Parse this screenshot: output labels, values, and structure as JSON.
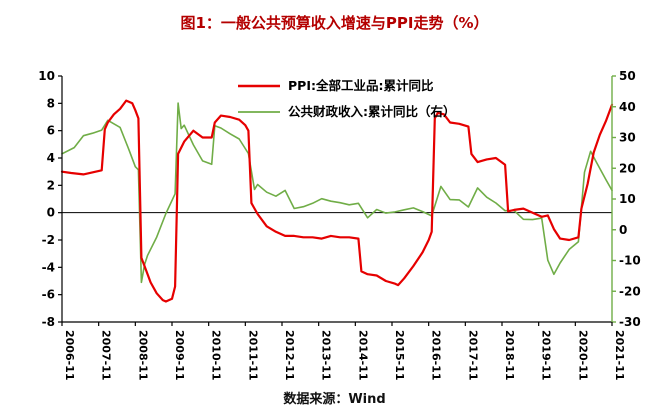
{
  "title": "图1：一般公共预算收入增速与PPI走势（%）",
  "source_note": "数据来源：Wind",
  "colors": {
    "ppi_line": "#e60000",
    "revenue_line": "#70ad47",
    "title_text": "#b40000",
    "axis": "#000000"
  },
  "chart_data": {
    "type": "line",
    "title": "图1：一般公共预算收入增速与PPI走势（%）",
    "grid": false,
    "legend_position": "top-center",
    "x_tick_labels": [
      "2006-11",
      "2007-11",
      "2008-11",
      "2009-11",
      "2010-11",
      "2011-11",
      "2012-11",
      "2013-11",
      "2014-11",
      "2015-11",
      "2016-11",
      "2017-11",
      "2018-11",
      "2019-11",
      "2020-11",
      "2021-11"
    ],
    "left_axis": {
      "min": -8,
      "max": 10,
      "ticks": [
        10,
        8,
        6,
        4,
        2,
        0,
        -2,
        -4,
        -6,
        -8
      ]
    },
    "right_axis": {
      "min": -30,
      "max": 50,
      "ticks": [
        50,
        40,
        30,
        20,
        10,
        0,
        -10,
        -20,
        -30
      ]
    },
    "series": [
      {
        "id": "ppi",
        "name": "PPI:全部工业品:累计同比",
        "axis": "left",
        "color": "#e60000",
        "points": [
          [
            "2006-11",
            3.0
          ],
          [
            "2007-02",
            2.9
          ],
          [
            "2007-06",
            2.8
          ],
          [
            "2007-10",
            3.0
          ],
          [
            "2007-12",
            3.1
          ],
          [
            "2008-01",
            6.1
          ],
          [
            "2008-02",
            6.6
          ],
          [
            "2008-04",
            7.2
          ],
          [
            "2008-06",
            7.6
          ],
          [
            "2008-08",
            8.2
          ],
          [
            "2008-10",
            8.0
          ],
          [
            "2008-11",
            7.5
          ],
          [
            "2008-12",
            6.9
          ],
          [
            "2009-01",
            -3.3
          ],
          [
            "2009-02",
            -3.9
          ],
          [
            "2009-04",
            -5.1
          ],
          [
            "2009-06",
            -5.9
          ],
          [
            "2009-08",
            -6.4
          ],
          [
            "2009-09",
            -6.5
          ],
          [
            "2009-11",
            -6.3
          ],
          [
            "2009-12",
            -5.4
          ],
          [
            "2010-01",
            4.3
          ],
          [
            "2010-03",
            5.2
          ],
          [
            "2010-06",
            6.0
          ],
          [
            "2010-09",
            5.5
          ],
          [
            "2010-12",
            5.5
          ],
          [
            "2011-01",
            6.6
          ],
          [
            "2011-03",
            7.1
          ],
          [
            "2011-06",
            7.0
          ],
          [
            "2011-09",
            6.8
          ],
          [
            "2011-11",
            6.4
          ],
          [
            "2011-12",
            6.0
          ],
          [
            "2012-01",
            0.7
          ],
          [
            "2012-03",
            -0.1
          ],
          [
            "2012-06",
            -1.0
          ],
          [
            "2012-09",
            -1.4
          ],
          [
            "2012-12",
            -1.7
          ],
          [
            "2013-03",
            -1.7
          ],
          [
            "2013-06",
            -1.8
          ],
          [
            "2013-09",
            -1.8
          ],
          [
            "2013-12",
            -1.9
          ],
          [
            "2014-03",
            -1.7
          ],
          [
            "2014-06",
            -1.8
          ],
          [
            "2014-09",
            -1.8
          ],
          [
            "2014-12",
            -1.9
          ],
          [
            "2015-01",
            -4.3
          ],
          [
            "2015-03",
            -4.5
          ],
          [
            "2015-06",
            -4.6
          ],
          [
            "2015-09",
            -5.0
          ],
          [
            "2015-12",
            -5.2
          ],
          [
            "2016-01",
            -5.3
          ],
          [
            "2016-03",
            -4.8
          ],
          [
            "2016-06",
            -3.9
          ],
          [
            "2016-09",
            -2.9
          ],
          [
            "2016-11",
            -2.0
          ],
          [
            "2016-12",
            -1.4
          ],
          [
            "2017-01",
            6.9
          ],
          [
            "2017-02",
            7.3
          ],
          [
            "2017-04",
            7.2
          ],
          [
            "2017-06",
            6.6
          ],
          [
            "2017-09",
            6.5
          ],
          [
            "2017-12",
            6.3
          ],
          [
            "2018-01",
            4.3
          ],
          [
            "2018-03",
            3.7
          ],
          [
            "2018-06",
            3.9
          ],
          [
            "2018-09",
            4.0
          ],
          [
            "2018-12",
            3.5
          ],
          [
            "2019-01",
            0.1
          ],
          [
            "2019-03",
            0.2
          ],
          [
            "2019-06",
            0.3
          ],
          [
            "2019-09",
            0.0
          ],
          [
            "2019-12",
            -0.3
          ],
          [
            "2020-02",
            -0.2
          ],
          [
            "2020-04",
            -1.2
          ],
          [
            "2020-06",
            -1.9
          ],
          [
            "2020-09",
            -2.0
          ],
          [
            "2020-12",
            -1.8
          ],
          [
            "2021-01",
            0.3
          ],
          [
            "2021-03",
            2.1
          ],
          [
            "2021-05",
            4.4
          ],
          [
            "2021-07",
            5.7
          ],
          [
            "2021-09",
            6.7
          ],
          [
            "2021-11",
            7.9
          ]
        ]
      },
      {
        "id": "revenue",
        "name": "公共财政收入:累计同比（右）",
        "axis": "right",
        "color": "#70ad47",
        "points": [
          [
            "2006-11",
            24.7
          ],
          [
            "2007-03",
            26.7
          ],
          [
            "2007-06",
            30.6
          ],
          [
            "2007-09",
            31.4
          ],
          [
            "2007-12",
            32.4
          ],
          [
            "2008-02",
            35.6
          ],
          [
            "2008-06",
            33.3
          ],
          [
            "2008-09",
            25.8
          ],
          [
            "2008-11",
            20.5
          ],
          [
            "2008-12",
            19.5
          ],
          [
            "2009-01",
            -17.1
          ],
          [
            "2009-02",
            -11.4
          ],
          [
            "2009-03",
            -8.3
          ],
          [
            "2009-06",
            -2.4
          ],
          [
            "2009-09",
            5.3
          ],
          [
            "2009-12",
            11.7
          ],
          [
            "2010-01",
            41.2
          ],
          [
            "2010-02",
            32.9
          ],
          [
            "2010-03",
            34.0
          ],
          [
            "2010-06",
            27.6
          ],
          [
            "2010-09",
            22.4
          ],
          [
            "2010-12",
            21.3
          ],
          [
            "2011-01",
            33.8
          ],
          [
            "2011-03",
            33.1
          ],
          [
            "2011-06",
            31.2
          ],
          [
            "2011-09",
            29.5
          ],
          [
            "2011-12",
            24.8
          ],
          [
            "2012-02",
            13.1
          ],
          [
            "2012-03",
            14.7
          ],
          [
            "2012-06",
            12.2
          ],
          [
            "2012-09",
            10.9
          ],
          [
            "2012-12",
            12.8
          ],
          [
            "2013-03",
            6.9
          ],
          [
            "2013-06",
            7.5
          ],
          [
            "2013-09",
            8.6
          ],
          [
            "2013-12",
            10.1
          ],
          [
            "2014-03",
            9.3
          ],
          [
            "2014-06",
            8.8
          ],
          [
            "2014-09",
            8.1
          ],
          [
            "2014-12",
            8.6
          ],
          [
            "2015-03",
            3.9
          ],
          [
            "2015-06",
            6.6
          ],
          [
            "2015-09",
            5.4
          ],
          [
            "2015-12",
            5.8
          ],
          [
            "2016-03",
            6.5
          ],
          [
            "2016-06",
            7.1
          ],
          [
            "2016-09",
            5.9
          ],
          [
            "2016-12",
            4.5
          ],
          [
            "2017-03",
            14.1
          ],
          [
            "2017-06",
            9.8
          ],
          [
            "2017-09",
            9.7
          ],
          [
            "2017-12",
            7.4
          ],
          [
            "2018-03",
            13.6
          ],
          [
            "2018-06",
            10.6
          ],
          [
            "2018-09",
            8.7
          ],
          [
            "2018-12",
            6.2
          ],
          [
            "2019-03",
            6.2
          ],
          [
            "2019-06",
            3.4
          ],
          [
            "2019-09",
            3.3
          ],
          [
            "2019-12",
            3.8
          ],
          [
            "2020-02",
            -9.9
          ],
          [
            "2020-04",
            -14.5
          ],
          [
            "2020-06",
            -10.8
          ],
          [
            "2020-09",
            -6.4
          ],
          [
            "2020-12",
            -3.9
          ],
          [
            "2021-02",
            18.7
          ],
          [
            "2021-04",
            25.5
          ],
          [
            "2021-06",
            21.8
          ],
          [
            "2021-09",
            16.3
          ],
          [
            "2021-11",
            12.8
          ]
        ]
      }
    ]
  }
}
